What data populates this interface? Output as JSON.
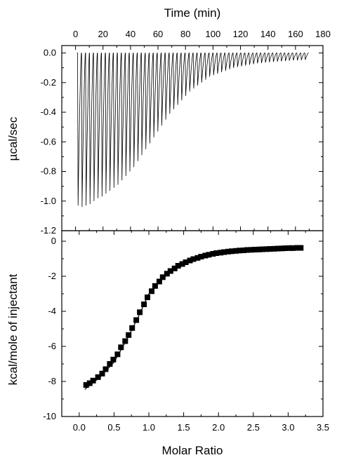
{
  "chart_data": [
    {
      "type": "line",
      "panel": "top",
      "xlabel": "Time (min)",
      "ylabel": "µcal/sec",
      "xlim": [
        -10,
        180
      ],
      "ylim": [
        -1.2,
        0.05
      ],
      "xticks": [
        0,
        20,
        40,
        60,
        80,
        100,
        120,
        140,
        160,
        180
      ],
      "yticks": [
        0.0,
        -0.2,
        -0.4,
        -0.6,
        -0.8,
        -1.0,
        -1.2
      ],
      "ytick_labels": [
        "0.0",
        "-0.2",
        "-0.4",
        "-0.6",
        "-0.8",
        "-1.0",
        "-1.2"
      ],
      "injection_start_min": 1.5,
      "injection_interval_min": 2.9,
      "injection_peaks": [
        -1.03,
        -1.04,
        -1.03,
        -1.02,
        -1.0,
        -0.98,
        -0.97,
        -0.95,
        -0.93,
        -0.91,
        -0.89,
        -0.86,
        -0.83,
        -0.8,
        -0.77,
        -0.73,
        -0.69,
        -0.65,
        -0.61,
        -0.57,
        -0.53,
        -0.49,
        -0.45,
        -0.41,
        -0.38,
        -0.35,
        -0.32,
        -0.29,
        -0.26,
        -0.24,
        -0.22,
        -0.2,
        -0.18,
        -0.16,
        -0.15,
        -0.14,
        -0.13,
        -0.12,
        -0.11,
        -0.1,
        -0.095,
        -0.09,
        -0.085,
        -0.08,
        -0.075,
        -0.07,
        -0.068,
        -0.065,
        -0.062,
        -0.06,
        -0.058,
        -0.056,
        -0.054,
        -0.052,
        -0.05,
        -0.05,
        -0.048,
        -0.046
      ]
    },
    {
      "type": "scatter",
      "panel": "bottom",
      "xlabel": "Molar Ratio",
      "ylabel": "kcal/mole of injectant",
      "xlim": [
        -0.25,
        3.5
      ],
      "ylim": [
        -10,
        0.6
      ],
      "xticks": [
        0.0,
        0.5,
        1.0,
        1.5,
        2.0,
        2.5,
        3.0,
        3.5
      ],
      "xtick_labels": [
        "0.0",
        "0.5",
        "1.0",
        "1.5",
        "2.0",
        "2.5",
        "3.0",
        "3.5"
      ],
      "yticks": [
        0,
        -2,
        -4,
        -6,
        -8,
        -10
      ],
      "ytick_labels": [
        "0",
        "-2",
        "-4",
        "-6",
        "-8",
        "-10"
      ],
      "x": [
        0.1,
        0.15,
        0.2,
        0.27,
        0.33,
        0.38,
        0.44,
        0.49,
        0.55,
        0.6,
        0.66,
        0.71,
        0.76,
        0.82,
        0.87,
        0.93,
        0.98,
        1.04,
        1.09,
        1.15,
        1.2,
        1.26,
        1.31,
        1.37,
        1.42,
        1.48,
        1.53,
        1.59,
        1.64,
        1.7,
        1.75,
        1.81,
        1.86,
        1.92,
        1.97,
        2.03,
        2.08,
        2.14,
        2.19,
        2.25,
        2.3,
        2.36,
        2.41,
        2.47,
        2.52,
        2.58,
        2.63,
        2.69,
        2.74,
        2.8,
        2.85,
        2.91,
        2.96,
        3.02,
        3.07,
        3.13,
        3.18
      ],
      "y": [
        -8.2,
        -8.1,
        -7.95,
        -7.75,
        -7.55,
        -7.3,
        -7.0,
        -6.75,
        -6.45,
        -6.05,
        -5.7,
        -5.35,
        -4.95,
        -4.5,
        -4.05,
        -3.6,
        -3.2,
        -2.85,
        -2.55,
        -2.3,
        -2.05,
        -1.85,
        -1.7,
        -1.55,
        -1.4,
        -1.3,
        -1.2,
        -1.1,
        -1.02,
        -0.95,
        -0.88,
        -0.82,
        -0.77,
        -0.72,
        -0.68,
        -0.65,
        -0.62,
        -0.59,
        -0.57,
        -0.55,
        -0.53,
        -0.52,
        -0.5,
        -0.49,
        -0.48,
        -0.47,
        -0.46,
        -0.45,
        -0.44,
        -0.43,
        -0.42,
        -0.41,
        -0.4,
        -0.39,
        -0.39,
        -0.38,
        -0.38
      ],
      "fit": [
        [
          0.08,
          -8.45
        ],
        [
          0.3,
          -7.75
        ],
        [
          0.5,
          -6.9
        ],
        [
          0.7,
          -5.5
        ],
        [
          0.85,
          -4.3
        ],
        [
          1.0,
          -3.0
        ],
        [
          1.15,
          -2.3
        ],
        [
          1.35,
          -1.6
        ],
        [
          1.6,
          -1.05
        ],
        [
          2.0,
          -0.7
        ],
        [
          2.5,
          -0.5
        ],
        [
          3.2,
          -0.37
        ]
      ]
    }
  ]
}
